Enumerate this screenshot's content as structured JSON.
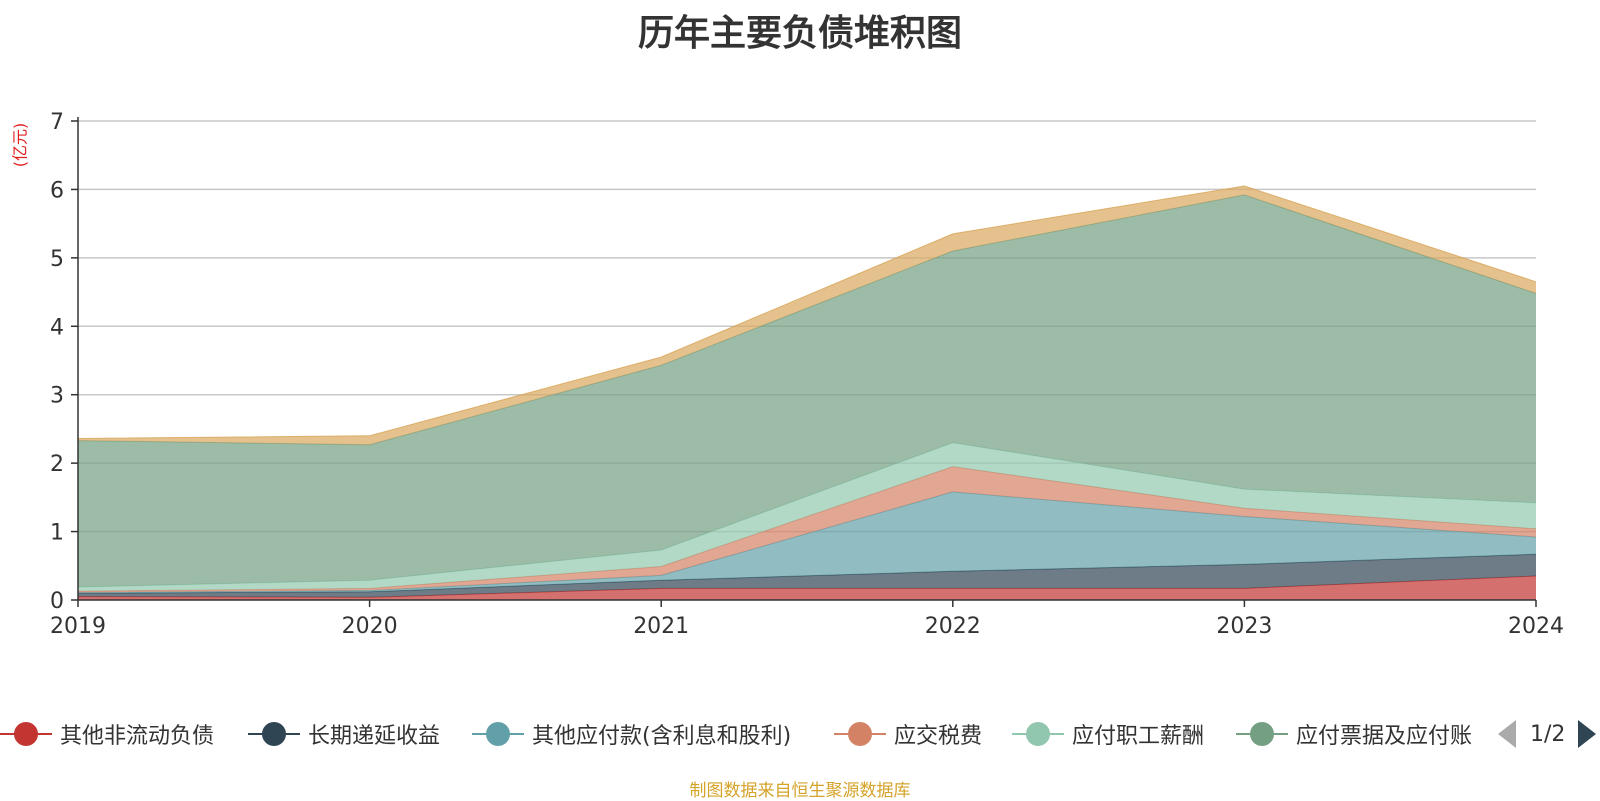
{
  "chart_data": {
    "type": "area",
    "stacked": true,
    "title": "历年主要负债堆积图",
    "unit_label": "(亿元)",
    "x": [
      "2019",
      "2020",
      "2021",
      "2022",
      "2023",
      "2024"
    ],
    "y_ticks": [
      "0",
      "1",
      "2",
      "3",
      "4",
      "5",
      "6",
      "7"
    ],
    "ylim": [
      0,
      7
    ],
    "grid": true,
    "legend_position": "bottom",
    "series": [
      {
        "name": "其他非流动负债",
        "color": "#c23531",
        "values": [
          0.05,
          0.04,
          0.17,
          0.17,
          0.17,
          0.35
        ]
      },
      {
        "name": "长期递延收益",
        "color": "#2f4554",
        "values": [
          0.05,
          0.08,
          0.12,
          0.25,
          0.35,
          0.32
        ]
      },
      {
        "name": "其他应付款(含利息和股利)",
        "color": "#61a0a8",
        "values": [
          0.01,
          0.02,
          0.07,
          1.16,
          0.7,
          0.25
        ]
      },
      {
        "name": "应交税费",
        "color": "#d48265",
        "values": [
          0.02,
          0.03,
          0.13,
          0.37,
          0.12,
          0.12
        ]
      },
      {
        "name": "应付职工薪酬",
        "color": "#91c7ae",
        "values": [
          0.06,
          0.12,
          0.24,
          0.35,
          0.28,
          0.38
        ]
      },
      {
        "name": "应付票据及应付账款",
        "color": "#749f83",
        "values": [
          2.14,
          1.98,
          2.7,
          2.8,
          4.3,
          3.06
        ]
      },
      {
        "name": "",
        "color": "#d9a75c",
        "values": [
          0.03,
          0.13,
          0.12,
          0.25,
          0.13,
          0.17
        ]
      }
    ]
  },
  "legend": {
    "items": [
      {
        "label": "其他非流动负债",
        "color": "#c23531"
      },
      {
        "label": "长期递延收益",
        "color": "#2f4554"
      },
      {
        "label": "其他应付款(含利息和股利)",
        "color": "#61a0a8"
      },
      {
        "label": "应交税费",
        "color": "#d48265"
      },
      {
        "label": "应付职工薪酬",
        "color": "#91c7ae"
      },
      {
        "label": "应付票据及应付账",
        "color": "#749f83"
      }
    ],
    "page_text": "1/2"
  },
  "footer": {
    "source": "制图数据来自恒生聚源数据库"
  }
}
